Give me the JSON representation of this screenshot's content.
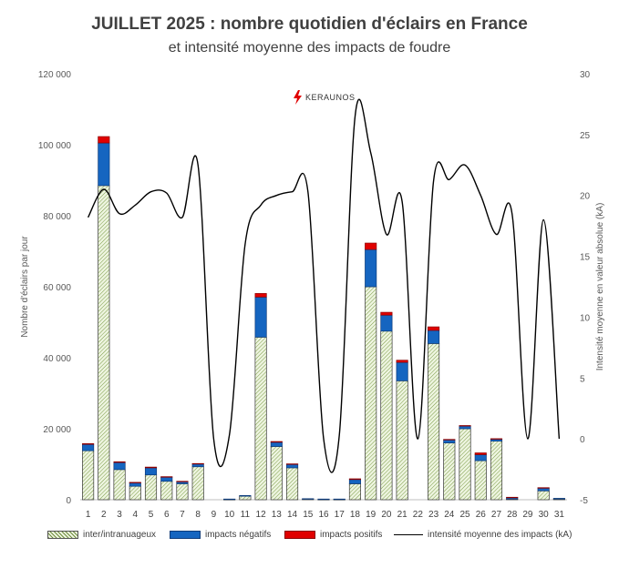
{
  "chart_data": {
    "type": "bar",
    "stacked": true,
    "title": "JUILLET 2025 : nombre quotidien d'éclairs en France",
    "subtitle": "et intensité moyenne des impacts de foudre",
    "watermark": "KERAUNOS",
    "ylabel": "Nombre d'éclairs par jour",
    "y2label": "Intensité moyenne en valeur absolue (kA)",
    "ylim": [
      0,
      120000
    ],
    "y2lim": [
      -5,
      30
    ],
    "yticks": [
      "0",
      "20 000",
      "40 000",
      "60 000",
      "80 000",
      "100 000",
      "120 000"
    ],
    "y2ticks": [
      "-5",
      "0",
      "5",
      "10",
      "15",
      "20",
      "25",
      "30"
    ],
    "categories": [
      "1",
      "2",
      "3",
      "4",
      "5",
      "6",
      "7",
      "8",
      "9",
      "10",
      "11",
      "12",
      "13",
      "14",
      "15",
      "16",
      "17",
      "18",
      "19",
      "20",
      "21",
      "22",
      "23",
      "24",
      "25",
      "26",
      "27",
      "28",
      "29",
      "30",
      "31"
    ],
    "legend_position": "bottom",
    "series": [
      {
        "name": "inter/intranuageux",
        "kind": "bar",
        "color": "#d8e8c0",
        "values": [
          13800,
          88500,
          8500,
          3800,
          7000,
          5200,
          4500,
          9300,
          0,
          100,
          1000,
          45800,
          15000,
          9000,
          200,
          100,
          100,
          4500,
          60000,
          47500,
          33500,
          0,
          44000,
          16000,
          20000,
          11000,
          16500,
          200,
          0,
          2500,
          200
        ]
      },
      {
        "name": "impacts négatifs",
        "kind": "bar",
        "color": "#1565c0",
        "values": [
          1800,
          12000,
          2000,
          1000,
          2000,
          1200,
          600,
          800,
          0,
          100,
          200,
          11300,
          1200,
          1000,
          100,
          100,
          100,
          1200,
          10500,
          4500,
          5200,
          0,
          3700,
          900,
          800,
          1700,
          600,
          400,
          0,
          800,
          200
        ]
      },
      {
        "name": "impacts positifs",
        "kind": "bar",
        "color": "#e00000",
        "values": [
          200,
          1800,
          200,
          100,
          200,
          100,
          100,
          100,
          0,
          0,
          0,
          1000,
          200,
          100,
          0,
          0,
          0,
          200,
          1800,
          800,
          600,
          0,
          1000,
          100,
          100,
          500,
          100,
          100,
          0,
          100,
          0
        ]
      },
      {
        "name": "intensité moyenne des impacts (kA)",
        "kind": "line",
        "axis": "right",
        "color": "#000000",
        "values": [
          18.2,
          20.5,
          18.5,
          19.2,
          20.3,
          20.2,
          18.2,
          22.5,
          0,
          0.3,
          16,
          19.2,
          20,
          20.3,
          20.3,
          0,
          0.3,
          26.5,
          23.5,
          16.8,
          19.5,
          0,
          21.2,
          21.3,
          22.5,
          20,
          16.8,
          18.5,
          0,
          18,
          0
        ]
      }
    ]
  }
}
